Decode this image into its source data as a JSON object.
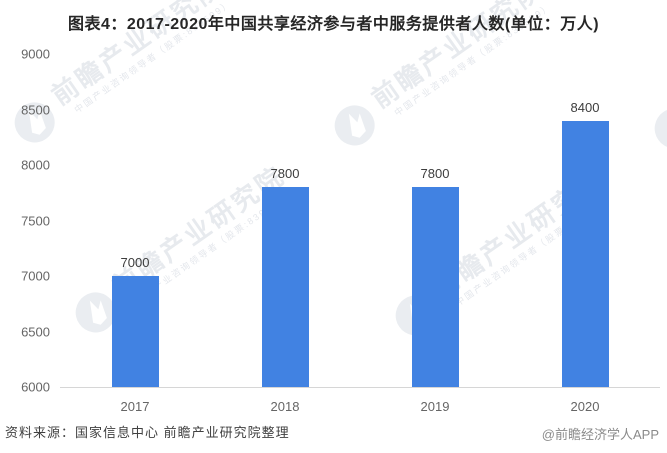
{
  "chart_data": {
    "type": "bar",
    "title": "图表4：2017-2020年中国共享经济参与者中服务提供者人数(单位：万人)",
    "categories": [
      "2017",
      "2018",
      "2019",
      "2020"
    ],
    "values": [
      7000,
      7800,
      7800,
      8400
    ],
    "xlabel": "",
    "ylabel": "",
    "ylim": [
      6000,
      9000
    ],
    "yticks": [
      6000,
      6500,
      7000,
      7500,
      8000,
      8500,
      9000
    ],
    "grid": false,
    "legend": "none",
    "value_labels": true,
    "bar_color": "#4182e2"
  },
  "footer": {
    "source": "资料来源：国家信息中心 前瞻产业研究院整理",
    "credit": "@前瞻经济学人APP"
  },
  "watermark": {
    "big_text": "前瞻产业研究院",
    "small_text": "中国产业咨询领导者（股票:839599）"
  }
}
